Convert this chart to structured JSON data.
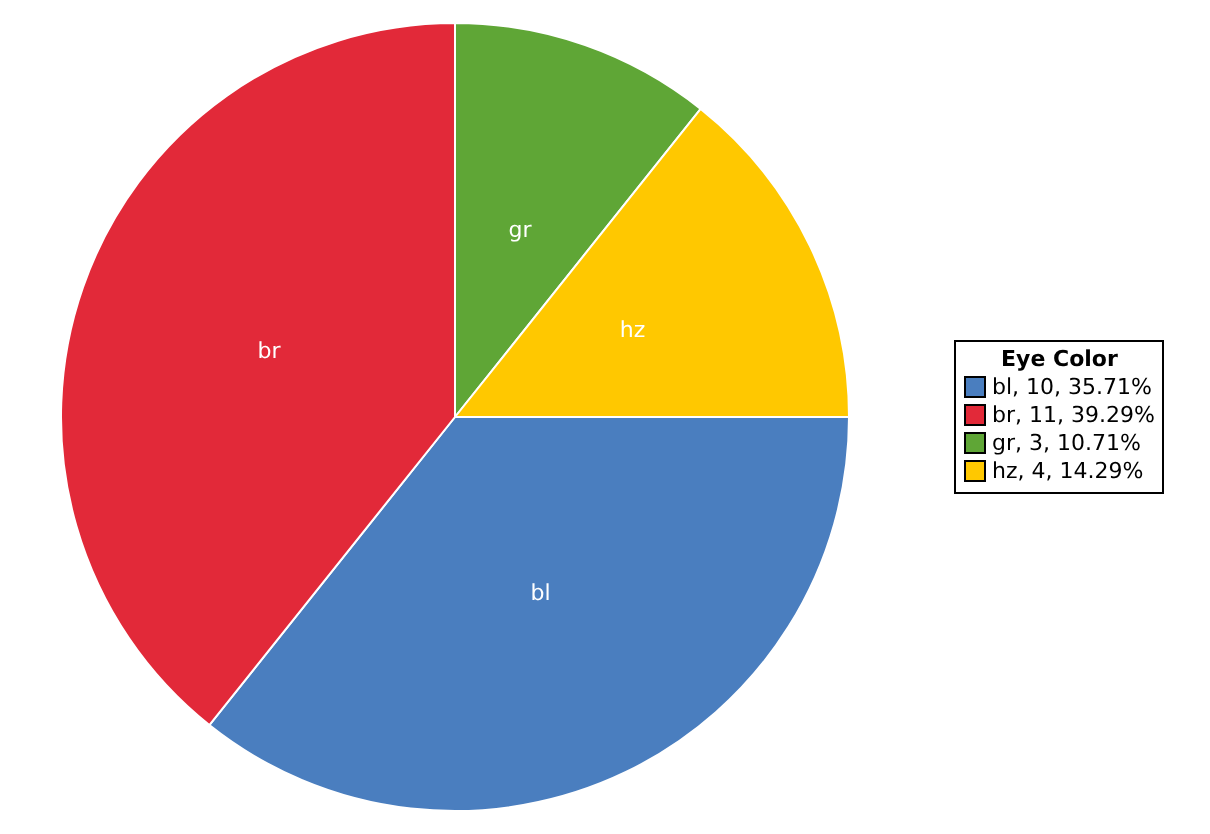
{
  "chart_data": {
    "type": "pie",
    "legend_title": "Eye Color",
    "legend": "right",
    "categories": [
      "bl",
      "br",
      "gr",
      "hz"
    ],
    "values": [
      10,
      11,
      3,
      4
    ],
    "value_labels": [
      ", 10, 35.71%",
      ", 11, 39.29%",
      ", 3, 10.71%",
      ", 4, 14.29%"
    ],
    "colors": [
      "#4a7ebf",
      "#e22939",
      "#5fa636",
      "#ffc800"
    ]
  }
}
